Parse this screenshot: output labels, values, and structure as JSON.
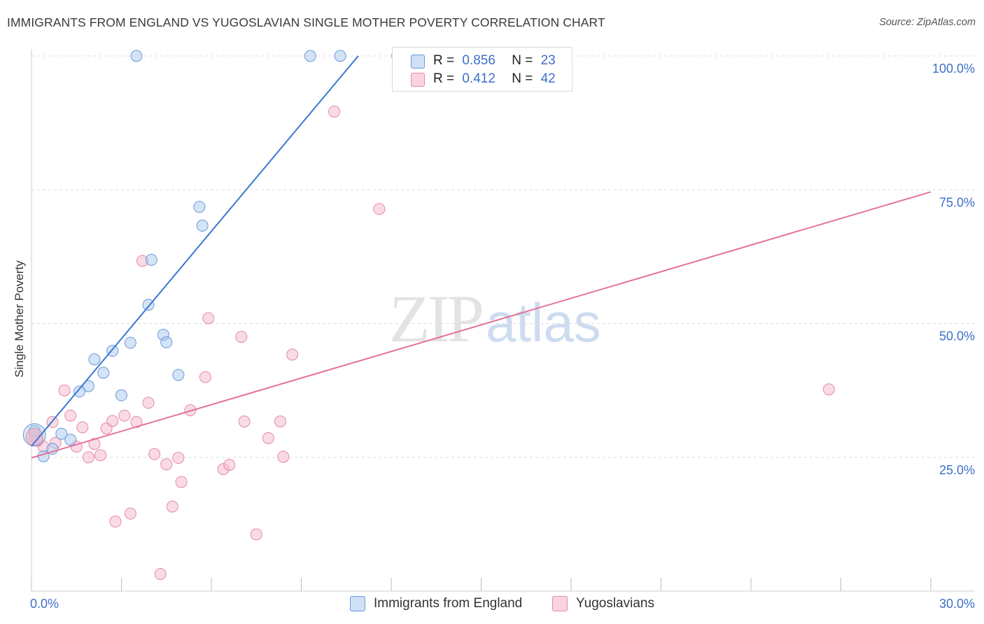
{
  "title": "IMMIGRANTS FROM ENGLAND VS YUGOSLAVIAN SINGLE MOTHER POVERTY CORRELATION CHART",
  "source": "Source: ZipAtlas.com",
  "watermark": {
    "zip": "ZIP",
    "atlas": "atlas"
  },
  "legend_stats": [
    {
      "r_label": "R =",
      "r_value": "0.856",
      "n_label": "N =",
      "n_value": "23",
      "color": "#a9c8ee"
    },
    {
      "r_label": "R =",
      "r_value": "0.412",
      "n_label": "N =",
      "n_value": "42",
      "color": "#f6b8cb"
    }
  ],
  "chart_data": {
    "type": "scatter",
    "xlabel": "",
    "ylabel": "Single Mother Poverty",
    "xlim": [
      0,
      30
    ],
    "ylim": [
      0,
      100
    ],
    "x_tick_labels": [
      "0.0%",
      "30.0%"
    ],
    "y_tick_labels": [
      "25.0%",
      "50.0%",
      "75.0%",
      "100.0%"
    ],
    "y_ticks": [
      25,
      50,
      75,
      100
    ],
    "grid": "horizontal dashed",
    "legend_position": "bottom",
    "series": [
      {
        "name": "Immigrants from England",
        "color": "#a9c8ee",
        "stroke": "#6a9bd8",
        "line_color": "#3a78d4",
        "trend": {
          "x": [
            0,
            10.9
          ],
          "y": [
            27.1,
            100
          ]
        },
        "points": [
          [
            0.1,
            29.9
          ],
          [
            0.4,
            25.2
          ],
          [
            0.7,
            26.6
          ],
          [
            1.0,
            29.4
          ],
          [
            1.3,
            28.3
          ],
          [
            1.6,
            37.3
          ],
          [
            1.9,
            38.3
          ],
          [
            2.1,
            43.3
          ],
          [
            2.4,
            40.8
          ],
          [
            2.7,
            44.9
          ],
          [
            3.0,
            36.6
          ],
          [
            3.3,
            46.4
          ],
          [
            3.5,
            100
          ],
          [
            3.9,
            53.5
          ],
          [
            4.0,
            61.9
          ],
          [
            4.4,
            47.9
          ],
          [
            4.5,
            46.5
          ],
          [
            4.9,
            40.4
          ],
          [
            5.6,
            71.8
          ],
          [
            5.7,
            68.3
          ],
          [
            9.3,
            100
          ],
          [
            10.3,
            100
          ],
          [
            12.9,
            100
          ]
        ]
      },
      {
        "name": "Yugoslavians",
        "color": "#f6b8cb",
        "stroke": "#e48aa6",
        "line_color": "#e4729a",
        "trend": {
          "x": [
            0,
            30
          ],
          "y": [
            24.9,
            74.6
          ]
        },
        "points": [
          [
            0.1,
            28.8
          ],
          [
            0.4,
            27.0
          ],
          [
            0.7,
            31.6
          ],
          [
            0.8,
            27.7
          ],
          [
            1.1,
            37.5
          ],
          [
            1.3,
            32.8
          ],
          [
            1.5,
            27.0
          ],
          [
            1.7,
            30.6
          ],
          [
            1.9,
            25.0
          ],
          [
            2.1,
            27.5
          ],
          [
            2.3,
            25.4
          ],
          [
            2.5,
            30.4
          ],
          [
            2.7,
            31.8
          ],
          [
            2.8,
            13.0
          ],
          [
            3.1,
            32.8
          ],
          [
            3.3,
            14.5
          ],
          [
            3.5,
            31.6
          ],
          [
            3.7,
            61.7
          ],
          [
            3.9,
            35.2
          ],
          [
            4.1,
            25.6
          ],
          [
            4.3,
            3.2
          ],
          [
            4.5,
            23.7
          ],
          [
            4.7,
            15.8
          ],
          [
            4.9,
            24.9
          ],
          [
            5.0,
            20.4
          ],
          [
            5.3,
            33.8
          ],
          [
            5.8,
            40.0
          ],
          [
            5.9,
            51.0
          ],
          [
            6.4,
            22.8
          ],
          [
            6.6,
            23.6
          ],
          [
            7.0,
            47.5
          ],
          [
            7.1,
            31.7
          ],
          [
            7.5,
            10.6
          ],
          [
            7.9,
            28.6
          ],
          [
            8.3,
            31.7
          ],
          [
            8.4,
            25.1
          ],
          [
            8.7,
            44.2
          ],
          [
            10.1,
            89.6
          ],
          [
            12.2,
            100
          ],
          [
            11.6,
            71.4
          ],
          [
            26.6,
            37.7
          ],
          [
            0.2,
            28.1
          ]
        ]
      }
    ]
  }
}
